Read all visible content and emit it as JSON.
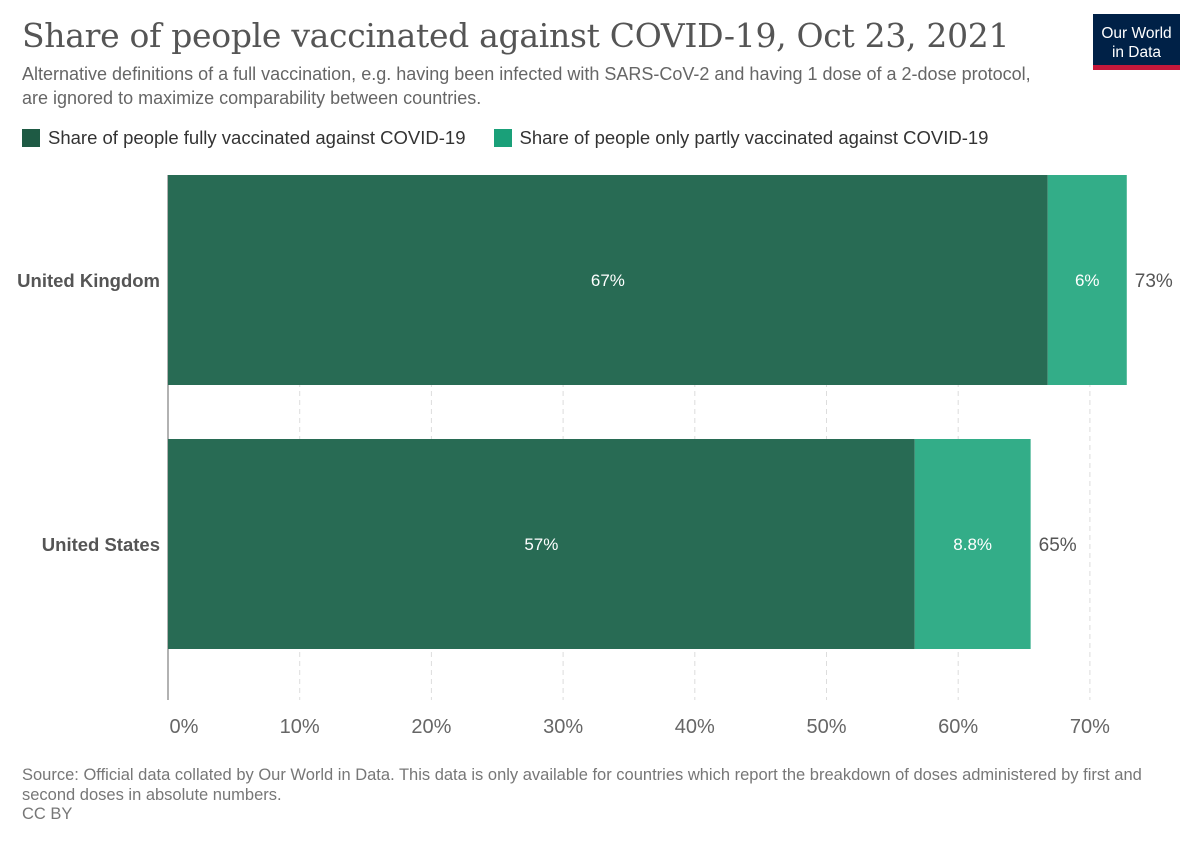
{
  "header": {
    "title": "Share of people vaccinated against COVID-19, Oct 23, 2021",
    "subtitle": "Alternative definitions of a full vaccination, e.g. having been infected with SARS-CoV-2 and having 1 dose of a 2-dose protocol, are ignored to maximize comparability between countries.",
    "logo_line1": "Our World",
    "logo_line2": "in Data"
  },
  "colors": {
    "fully": "#286b54",
    "partly": "#33ad88",
    "logo_bg": "#002147",
    "logo_accent": "#c4183b"
  },
  "chart_data": {
    "type": "bar",
    "orientation": "horizontal",
    "stacked": true,
    "categories": [
      "United Kingdom",
      "United States"
    ],
    "series": [
      {
        "name": "Share of people fully vaccinated against COVID-19",
        "values": [
          66.8,
          56.7
        ],
        "labels": [
          "67%",
          "57%"
        ],
        "color": "#286b54"
      },
      {
        "name": "Share of people only partly vaccinated against COVID-19",
        "values": [
          6.0,
          8.8
        ],
        "labels": [
          "6%",
          "8.8%"
        ],
        "color": "#33ad88"
      }
    ],
    "totals": [
      "73%",
      "65%"
    ],
    "x_ticks": [
      0,
      10,
      20,
      30,
      40,
      50,
      60,
      70
    ],
    "x_tick_labels": [
      "0%",
      "10%",
      "20%",
      "30%",
      "40%",
      "50%",
      "60%",
      "70%"
    ],
    "xlim": [
      0,
      70
    ],
    "grid": "vertical dashed",
    "legend": "top"
  },
  "footer": {
    "source": "Source: Official data collated by Our World in Data. This data is only available for countries which report the breakdown of doses administered by first and second doses in absolute numbers.",
    "license": "CC BY"
  }
}
